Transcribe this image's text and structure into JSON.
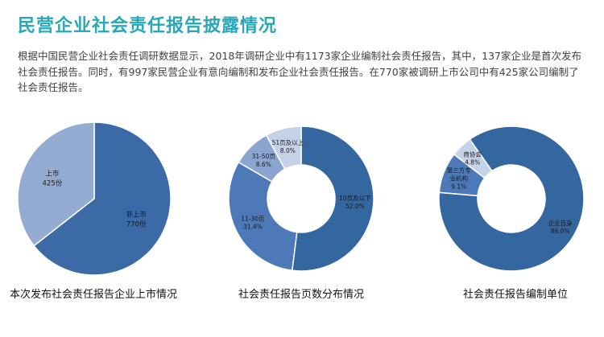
{
  "title": "民营企业社会责任报告披露情况",
  "intro": "根据中国民营企业社会责任调研数据显示，2018年调研企业中有1173家企业编制社会责任报告，其中，137家企业是首次发布社会责任报告。同时，有997家民营企业有意向编制和发布企业社会责任报告。在770家被调研上市公司中有425家公司编制了社会责任报告。",
  "chart_data": [
    {
      "type": "pie",
      "title": "本次发布社会责任报告企业上市情况",
      "slices": [
        {
          "label": "非上市",
          "value": 770,
          "value_text": "770份",
          "color": "#3b6aa6"
        },
        {
          "label": "上市",
          "value": 425,
          "value_text": "425份",
          "color": "#94acd2"
        }
      ]
    },
    {
      "type": "pie",
      "donut": true,
      "title": "社会责任报告页数分布情况",
      "slices": [
        {
          "label": "10页及以下",
          "value": 52.0,
          "value_text": "52.0%",
          "color": "#34669f"
        },
        {
          "label": "11-30页",
          "value": 31.4,
          "value_text": "31.4%",
          "color": "#4d79b8"
        },
        {
          "label": "31-50页",
          "value": 8.6,
          "value_text": "8.6%",
          "color": "#8aa6d0"
        },
        {
          "label": "51页及以上",
          "value": 8.0,
          "value_text": "8.0%",
          "color": "#c4d2e8"
        }
      ]
    },
    {
      "type": "pie",
      "donut": true,
      "title": "社会责任报告编制单位",
      "slices": [
        {
          "label": "企业自身",
          "value": 86.0,
          "value_text": "86.0%",
          "color": "#34669f"
        },
        {
          "label": "第三方专业机构",
          "label_lines": [
            "第三方专",
            "业机构"
          ],
          "value": 9.1,
          "value_text": "9.1%",
          "color": "#4d79b8"
        },
        {
          "label": "商协会",
          "value": 4.8,
          "value_text": "4.8%",
          "color": "#c4d2e8"
        }
      ]
    }
  ]
}
